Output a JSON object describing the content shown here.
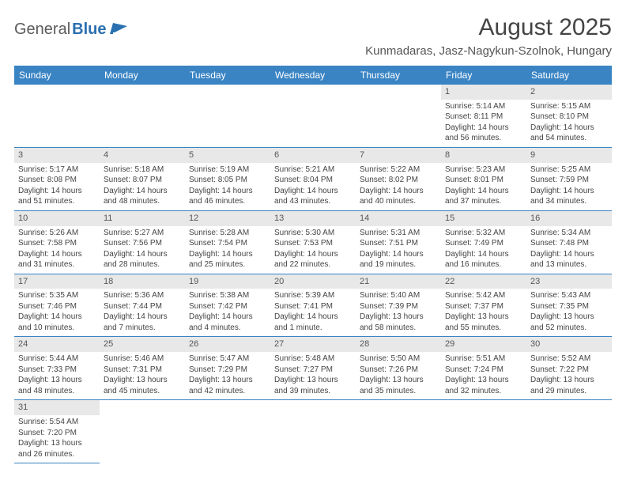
{
  "branding": {
    "logo_text_1": "General",
    "logo_text_2": "Blue"
  },
  "header": {
    "month_title": "August 2025",
    "location": "Kunmadaras, Jasz-Nagykun-Szolnok, Hungary"
  },
  "style": {
    "header_bg": "#3a84c4",
    "daynum_bg": "#e8e8e8",
    "page_bg": "#ffffff",
    "text_color": "#444444"
  },
  "day_names": [
    "Sunday",
    "Monday",
    "Tuesday",
    "Wednesday",
    "Thursday",
    "Friday",
    "Saturday"
  ],
  "weeks": [
    [
      {
        "day": "",
        "sunrise": "",
        "sunset": "",
        "daylight": ""
      },
      {
        "day": "",
        "sunrise": "",
        "sunset": "",
        "daylight": ""
      },
      {
        "day": "",
        "sunrise": "",
        "sunset": "",
        "daylight": ""
      },
      {
        "day": "",
        "sunrise": "",
        "sunset": "",
        "daylight": ""
      },
      {
        "day": "",
        "sunrise": "",
        "sunset": "",
        "daylight": ""
      },
      {
        "day": "1",
        "sunrise": "Sunrise: 5:14 AM",
        "sunset": "Sunset: 8:11 PM",
        "daylight": "Daylight: 14 hours and 56 minutes."
      },
      {
        "day": "2",
        "sunrise": "Sunrise: 5:15 AM",
        "sunset": "Sunset: 8:10 PM",
        "daylight": "Daylight: 14 hours and 54 minutes."
      }
    ],
    [
      {
        "day": "3",
        "sunrise": "Sunrise: 5:17 AM",
        "sunset": "Sunset: 8:08 PM",
        "daylight": "Daylight: 14 hours and 51 minutes."
      },
      {
        "day": "4",
        "sunrise": "Sunrise: 5:18 AM",
        "sunset": "Sunset: 8:07 PM",
        "daylight": "Daylight: 14 hours and 48 minutes."
      },
      {
        "day": "5",
        "sunrise": "Sunrise: 5:19 AM",
        "sunset": "Sunset: 8:05 PM",
        "daylight": "Daylight: 14 hours and 46 minutes."
      },
      {
        "day": "6",
        "sunrise": "Sunrise: 5:21 AM",
        "sunset": "Sunset: 8:04 PM",
        "daylight": "Daylight: 14 hours and 43 minutes."
      },
      {
        "day": "7",
        "sunrise": "Sunrise: 5:22 AM",
        "sunset": "Sunset: 8:02 PM",
        "daylight": "Daylight: 14 hours and 40 minutes."
      },
      {
        "day": "8",
        "sunrise": "Sunrise: 5:23 AM",
        "sunset": "Sunset: 8:01 PM",
        "daylight": "Daylight: 14 hours and 37 minutes."
      },
      {
        "day": "9",
        "sunrise": "Sunrise: 5:25 AM",
        "sunset": "Sunset: 7:59 PM",
        "daylight": "Daylight: 14 hours and 34 minutes."
      }
    ],
    [
      {
        "day": "10",
        "sunrise": "Sunrise: 5:26 AM",
        "sunset": "Sunset: 7:58 PM",
        "daylight": "Daylight: 14 hours and 31 minutes."
      },
      {
        "day": "11",
        "sunrise": "Sunrise: 5:27 AM",
        "sunset": "Sunset: 7:56 PM",
        "daylight": "Daylight: 14 hours and 28 minutes."
      },
      {
        "day": "12",
        "sunrise": "Sunrise: 5:28 AM",
        "sunset": "Sunset: 7:54 PM",
        "daylight": "Daylight: 14 hours and 25 minutes."
      },
      {
        "day": "13",
        "sunrise": "Sunrise: 5:30 AM",
        "sunset": "Sunset: 7:53 PM",
        "daylight": "Daylight: 14 hours and 22 minutes."
      },
      {
        "day": "14",
        "sunrise": "Sunrise: 5:31 AM",
        "sunset": "Sunset: 7:51 PM",
        "daylight": "Daylight: 14 hours and 19 minutes."
      },
      {
        "day": "15",
        "sunrise": "Sunrise: 5:32 AM",
        "sunset": "Sunset: 7:49 PM",
        "daylight": "Daylight: 14 hours and 16 minutes."
      },
      {
        "day": "16",
        "sunrise": "Sunrise: 5:34 AM",
        "sunset": "Sunset: 7:48 PM",
        "daylight": "Daylight: 14 hours and 13 minutes."
      }
    ],
    [
      {
        "day": "17",
        "sunrise": "Sunrise: 5:35 AM",
        "sunset": "Sunset: 7:46 PM",
        "daylight": "Daylight: 14 hours and 10 minutes."
      },
      {
        "day": "18",
        "sunrise": "Sunrise: 5:36 AM",
        "sunset": "Sunset: 7:44 PM",
        "daylight": "Daylight: 14 hours and 7 minutes."
      },
      {
        "day": "19",
        "sunrise": "Sunrise: 5:38 AM",
        "sunset": "Sunset: 7:42 PM",
        "daylight": "Daylight: 14 hours and 4 minutes."
      },
      {
        "day": "20",
        "sunrise": "Sunrise: 5:39 AM",
        "sunset": "Sunset: 7:41 PM",
        "daylight": "Daylight: 14 hours and 1 minute."
      },
      {
        "day": "21",
        "sunrise": "Sunrise: 5:40 AM",
        "sunset": "Sunset: 7:39 PM",
        "daylight": "Daylight: 13 hours and 58 minutes."
      },
      {
        "day": "22",
        "sunrise": "Sunrise: 5:42 AM",
        "sunset": "Sunset: 7:37 PM",
        "daylight": "Daylight: 13 hours and 55 minutes."
      },
      {
        "day": "23",
        "sunrise": "Sunrise: 5:43 AM",
        "sunset": "Sunset: 7:35 PM",
        "daylight": "Daylight: 13 hours and 52 minutes."
      }
    ],
    [
      {
        "day": "24",
        "sunrise": "Sunrise: 5:44 AM",
        "sunset": "Sunset: 7:33 PM",
        "daylight": "Daylight: 13 hours and 48 minutes."
      },
      {
        "day": "25",
        "sunrise": "Sunrise: 5:46 AM",
        "sunset": "Sunset: 7:31 PM",
        "daylight": "Daylight: 13 hours and 45 minutes."
      },
      {
        "day": "26",
        "sunrise": "Sunrise: 5:47 AM",
        "sunset": "Sunset: 7:29 PM",
        "daylight": "Daylight: 13 hours and 42 minutes."
      },
      {
        "day": "27",
        "sunrise": "Sunrise: 5:48 AM",
        "sunset": "Sunset: 7:27 PM",
        "daylight": "Daylight: 13 hours and 39 minutes."
      },
      {
        "day": "28",
        "sunrise": "Sunrise: 5:50 AM",
        "sunset": "Sunset: 7:26 PM",
        "daylight": "Daylight: 13 hours and 35 minutes."
      },
      {
        "day": "29",
        "sunrise": "Sunrise: 5:51 AM",
        "sunset": "Sunset: 7:24 PM",
        "daylight": "Daylight: 13 hours and 32 minutes."
      },
      {
        "day": "30",
        "sunrise": "Sunrise: 5:52 AM",
        "sunset": "Sunset: 7:22 PM",
        "daylight": "Daylight: 13 hours and 29 minutes."
      }
    ],
    [
      {
        "day": "31",
        "sunrise": "Sunrise: 5:54 AM",
        "sunset": "Sunset: 7:20 PM",
        "daylight": "Daylight: 13 hours and 26 minutes."
      },
      {
        "day": "",
        "sunrise": "",
        "sunset": "",
        "daylight": ""
      },
      {
        "day": "",
        "sunrise": "",
        "sunset": "",
        "daylight": ""
      },
      {
        "day": "",
        "sunrise": "",
        "sunset": "",
        "daylight": ""
      },
      {
        "day": "",
        "sunrise": "",
        "sunset": "",
        "daylight": ""
      },
      {
        "day": "",
        "sunrise": "",
        "sunset": "",
        "daylight": ""
      },
      {
        "day": "",
        "sunrise": "",
        "sunset": "",
        "daylight": ""
      }
    ]
  ]
}
